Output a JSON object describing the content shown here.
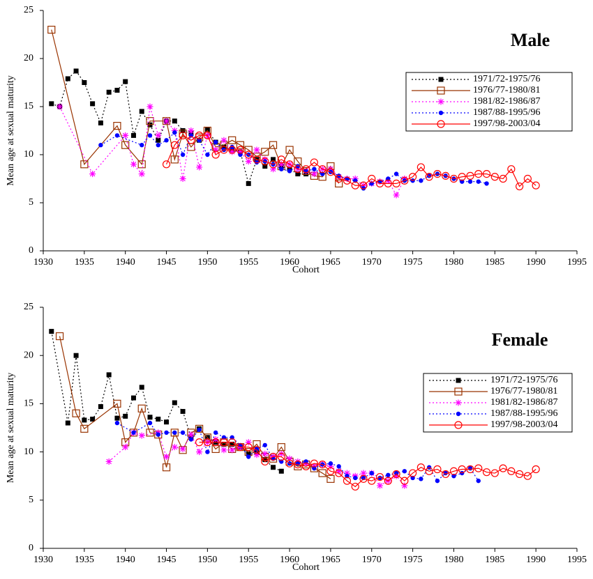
{
  "chart_data": [
    {
      "type": "line",
      "title": "Male",
      "xlabel": "Cohort",
      "ylabel": "Mean age at sexual maturity",
      "xlim": [
        1930,
        1995
      ],
      "xticks": [
        1930,
        1935,
        1940,
        1945,
        1950,
        1955,
        1960,
        1965,
        1970,
        1975,
        1980,
        1985,
        1990,
        1995
      ],
      "ylim": [
        0,
        25
      ],
      "yticks": [
        0,
        5,
        10,
        15,
        20,
        25
      ],
      "legend": "upper right",
      "series": [
        {
          "name": "1971/72-1975/76",
          "color": "#000000",
          "marker": "square",
          "line": "dotted",
          "x": [
            1931,
            1932,
            1933,
            1934,
            1935,
            1936,
            1937,
            1938,
            1939,
            1940,
            1941,
            1942,
            1943,
            1944,
            1945,
            1946,
            1947,
            1948,
            1949,
            1950,
            1951,
            1952,
            1953,
            1954,
            1955,
            1956,
            1957,
            1958,
            1959,
            1960,
            1961,
            1962
          ],
          "values": [
            15.3,
            15.0,
            17.9,
            18.7,
            17.5,
            15.3,
            13.3,
            16.5,
            16.7,
            17.6,
            12.0,
            14.5,
            13.1,
            11.5,
            13.5,
            13.5,
            12.5,
            12.2,
            11.5,
            12.6,
            11.3,
            10.8,
            10.5,
            10.3,
            7.0,
            9.5,
            8.8,
            9.5,
            8.8,
            8.5,
            8.0,
            8.0
          ]
        },
        {
          "name": "1976/77-1980/81",
          "color": "#993300",
          "marker": "open-square",
          "line": "solid",
          "x": [
            1931,
            1935,
            1939,
            1940,
            1942,
            1943,
            1945,
            1946,
            1947,
            1948,
            1949,
            1950,
            1951,
            1952,
            1953,
            1954,
            1955,
            1956,
            1957,
            1958,
            1959,
            1960,
            1961,
            1962,
            1963,
            1964,
            1965,
            1966
          ],
          "values": [
            23.0,
            9.0,
            13.0,
            11.0,
            9.0,
            13.5,
            13.5,
            9.5,
            12.2,
            10.8,
            11.8,
            12.5,
            10.8,
            11.0,
            11.5,
            11.0,
            10.5,
            9.8,
            10.3,
            11.0,
            8.8,
            10.5,
            9.3,
            8.3,
            7.8,
            7.7,
            8.8,
            7.0
          ]
        },
        {
          "name": "1981/82-1986/87",
          "color": "#ff00ff",
          "marker": "asterisk",
          "line": "dotted",
          "x": [
            1932,
            1936,
            1940,
            1941,
            1942,
            1943,
            1944,
            1945,
            1946,
            1947,
            1948,
            1949,
            1950,
            1951,
            1952,
            1953,
            1954,
            1955,
            1956,
            1957,
            1958,
            1959,
            1960,
            1961,
            1962,
            1963,
            1964,
            1965,
            1966,
            1967,
            1968,
            1969,
            1970,
            1971,
            1972,
            1973,
            1974
          ],
          "values": [
            15.0,
            8.0,
            12.0,
            9.0,
            8.0,
            15.0,
            12.0,
            13.5,
            12.5,
            7.5,
            12.5,
            8.7,
            12.0,
            10.5,
            11.5,
            10.3,
            10.3,
            9.3,
            10.5,
            9.5,
            8.5,
            9.0,
            9.0,
            8.5,
            8.3,
            8.0,
            8.5,
            8.5,
            7.7,
            7.5,
            7.5,
            6.8,
            7.0,
            7.2,
            7.3,
            5.8,
            7.5
          ]
        },
        {
          "name": "1987/88-1995/96",
          "color": "#0000ff",
          "marker": "dot",
          "line": "dotted",
          "x": [
            1937,
            1939,
            1942,
            1943,
            1944,
            1945,
            1946,
            1947,
            1948,
            1949,
            1950,
            1951,
            1952,
            1953,
            1954,
            1955,
            1956,
            1957,
            1958,
            1959,
            1960,
            1961,
            1962,
            1963,
            1964,
            1965,
            1966,
            1967,
            1968,
            1969,
            1970,
            1971,
            1972,
            1973,
            1974,
            1975,
            1976,
            1977,
            1978,
            1979,
            1980,
            1981,
            1982,
            1983,
            1984
          ],
          "values": [
            11.0,
            12.0,
            11.0,
            12.0,
            11.0,
            11.5,
            12.3,
            10.0,
            12.0,
            11.5,
            10.0,
            11.3,
            10.5,
            10.8,
            10.0,
            10.0,
            9.2,
            9.3,
            9.0,
            8.5,
            8.3,
            8.8,
            8.3,
            8.5,
            8.0,
            8.2,
            7.8,
            7.5,
            7.3,
            6.5,
            7.0,
            7.2,
            7.5,
            8.0,
            7.3,
            7.3,
            7.3,
            7.8,
            8.0,
            7.8,
            7.5,
            7.2,
            7.2,
            7.2,
            7.0
          ]
        },
        {
          "name": "1997/98-2003/04",
          "color": "#ff0000",
          "marker": "open-circle",
          "line": "solid",
          "x": [
            1945,
            1946,
            1947,
            1948,
            1949,
            1950,
            1951,
            1952,
            1953,
            1954,
            1955,
            1956,
            1957,
            1958,
            1959,
            1960,
            1961,
            1962,
            1963,
            1964,
            1965,
            1966,
            1967,
            1968,
            1969,
            1970,
            1971,
            1972,
            1973,
            1974,
            1975,
            1976,
            1977,
            1978,
            1979,
            1980,
            1981,
            1982,
            1983,
            1984,
            1985,
            1986,
            1987,
            1988,
            1989,
            1990
          ],
          "values": [
            9.0,
            11.0,
            12.0,
            11.5,
            12.0,
            12.0,
            10.0,
            10.5,
            10.5,
            10.5,
            10.0,
            9.5,
            9.3,
            9.0,
            9.5,
            9.0,
            8.5,
            8.5,
            9.2,
            8.5,
            8.2,
            7.5,
            7.3,
            6.8,
            6.8,
            7.5,
            7.0,
            7.0,
            7.0,
            7.3,
            7.7,
            8.7,
            7.7,
            8.0,
            7.8,
            7.5,
            7.7,
            7.8,
            8.0,
            8.0,
            7.7,
            7.5,
            8.5,
            6.7,
            7.5,
            6.8
          ]
        }
      ]
    },
    {
      "type": "line",
      "title": "Female",
      "xlabel": "Cohort",
      "ylabel": "Mean age at sexual maturity",
      "xlim": [
        1930,
        1995
      ],
      "xticks": [
        1930,
        1935,
        1940,
        1945,
        1950,
        1955,
        1960,
        1965,
        1970,
        1975,
        1980,
        1985,
        1990,
        1995
      ],
      "ylim": [
        0,
        25
      ],
      "yticks": [
        0,
        5,
        10,
        15,
        20,
        25
      ],
      "legend": "upper right",
      "series": [
        {
          "name": "1971/72-1975/76",
          "color": "#000000",
          "marker": "square",
          "line": "dotted",
          "x": [
            1931,
            1933,
            1934,
            1935,
            1936,
            1937,
            1938,
            1939,
            1940,
            1941,
            1942,
            1943,
            1944,
            1945,
            1946,
            1947,
            1948,
            1949,
            1950,
            1951,
            1952,
            1953,
            1954,
            1955,
            1956,
            1957,
            1958,
            1959
          ],
          "values": [
            22.5,
            13.0,
            20.0,
            13.3,
            13.4,
            14.7,
            18.0,
            13.5,
            13.7,
            15.6,
            16.7,
            13.6,
            13.4,
            13.1,
            15.1,
            14.2,
            11.5,
            12.4,
            11.5,
            11.0,
            10.8,
            10.8,
            10.5,
            9.8,
            10.0,
            9.2,
            8.4,
            8.0
          ]
        },
        {
          "name": "1976/77-1980/81",
          "color": "#993300",
          "marker": "open-square",
          "line": "solid",
          "x": [
            1932,
            1934,
            1935,
            1939,
            1940,
            1941,
            1942,
            1943,
            1944,
            1945,
            1946,
            1947,
            1948,
            1949,
            1950,
            1951,
            1952,
            1953,
            1954,
            1955,
            1956,
            1957,
            1958,
            1959,
            1960,
            1961,
            1962,
            1963,
            1964,
            1965
          ],
          "values": [
            22.0,
            14.0,
            12.4,
            15.0,
            11.0,
            12.0,
            14.5,
            12.0,
            11.8,
            8.4,
            12.0,
            10.2,
            12.0,
            12.4,
            11.5,
            10.3,
            11.0,
            10.3,
            10.5,
            10.0,
            10.8,
            9.5,
            9.3,
            10.5,
            9.0,
            8.5,
            8.7,
            8.3,
            7.8,
            7.2
          ]
        },
        {
          "name": "1981/82-1986/87",
          "color": "#ff00ff",
          "marker": "asterisk",
          "line": "dotted",
          "x": [
            1938,
            1940,
            1941,
            1942,
            1944,
            1945,
            1946,
            1947,
            1948,
            1949,
            1950,
            1951,
            1952,
            1953,
            1954,
            1955,
            1956,
            1957,
            1958,
            1959,
            1960,
            1961,
            1962,
            1963,
            1964,
            1965,
            1966,
            1967,
            1968,
            1969,
            1970,
            1971,
            1972,
            1973,
            1974
          ],
          "values": [
            9.0,
            10.5,
            12.0,
            11.7,
            12.0,
            9.5,
            10.5,
            10.3,
            11.8,
            10.0,
            11.0,
            11.3,
            10.2,
            10.2,
            10.5,
            11.0,
            9.7,
            9.8,
            9.5,
            9.8,
            9.3,
            9.0,
            8.8,
            8.5,
            8.7,
            8.5,
            8.0,
            7.8,
            7.5,
            7.8,
            7.8,
            6.5,
            7.0,
            7.5,
            6.5
          ]
        },
        {
          "name": "1987/88-1995/96",
          "color": "#0000ff",
          "marker": "dot",
          "line": "dotted",
          "x": [
            1939,
            1941,
            1943,
            1944,
            1945,
            1946,
            1947,
            1948,
            1949,
            1950,
            1951,
            1952,
            1953,
            1954,
            1955,
            1956,
            1957,
            1958,
            1959,
            1960,
            1961,
            1962,
            1963,
            1964,
            1965,
            1966,
            1967,
            1968,
            1969,
            1970,
            1971,
            1972,
            1973,
            1974,
            1975,
            1976,
            1977,
            1978,
            1979,
            1980,
            1981,
            1982,
            1983
          ],
          "values": [
            13.0,
            12.0,
            13.0,
            11.8,
            12.0,
            12.0,
            12.0,
            11.3,
            12.3,
            10.0,
            12.0,
            11.5,
            11.5,
            10.7,
            9.5,
            10.3,
            10.7,
            9.3,
            9.0,
            8.8,
            8.8,
            9.0,
            8.3,
            8.7,
            8.8,
            8.5,
            7.5,
            7.3,
            7.3,
            7.8,
            7.3,
            7.6,
            7.8,
            8.0,
            7.3,
            7.2,
            8.4,
            7.0,
            7.8,
            7.5,
            7.8,
            8.3,
            7.0
          ]
        },
        {
          "name": "1997/98-2003/04",
          "color": "#ff0000",
          "marker": "open-circle",
          "line": "solid",
          "x": [
            1949,
            1950,
            1951,
            1952,
            1953,
            1954,
            1955,
            1956,
            1957,
            1958,
            1959,
            1960,
            1961,
            1962,
            1963,
            1964,
            1965,
            1966,
            1967,
            1968,
            1969,
            1970,
            1971,
            1972,
            1973,
            1974,
            1975,
            1976,
            1977,
            1978,
            1979,
            1980,
            1981,
            1982,
            1983,
            1984,
            1985,
            1986,
            1987,
            1988,
            1989,
            1990
          ],
          "values": [
            11.0,
            11.0,
            11.0,
            11.0,
            11.0,
            10.5,
            10.5,
            10.2,
            9.0,
            9.5,
            9.5,
            8.8,
            8.7,
            8.5,
            8.8,
            8.7,
            8.0,
            7.8,
            7.0,
            6.4,
            7.2,
            7.0,
            7.4,
            7.0,
            7.7,
            7.0,
            7.8,
            8.4,
            8.0,
            8.2,
            7.7,
            8.0,
            8.2,
            8.2,
            8.3,
            7.9,
            7.8,
            8.3,
            8.0,
            7.7,
            7.5,
            8.2
          ]
        }
      ]
    }
  ]
}
